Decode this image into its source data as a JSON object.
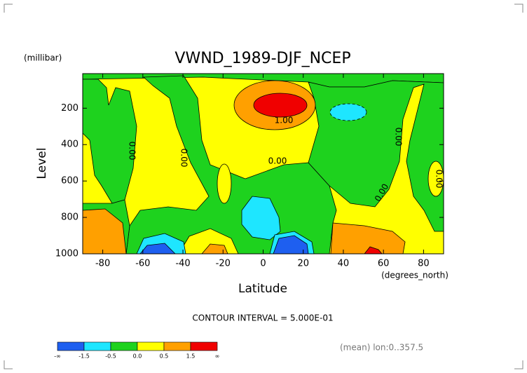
{
  "chart_data": {
    "type": "contour",
    "title": "VWND_1989-DJF_NCEP",
    "y_unit": "(millibar)",
    "ylabel": "Level",
    "xlabel": "Latitude",
    "x_unit": "(degrees_north)",
    "note": "CONTOUR INTERVAL = 5.000E-01",
    "footer": "(mean) lon:0..357.5",
    "xlim": [
      -90,
      90
    ],
    "xticks": [
      -80,
      -60,
      -40,
      -20,
      0,
      20,
      40,
      60,
      80
    ],
    "ylim": [
      1000,
      10
    ],
    "yticks": [
      200,
      400,
      600,
      800,
      1000
    ],
    "contour_labels": [
      "0.00",
      "0.00",
      "0.00",
      "0.00",
      "0.00",
      "0.00",
      "1.00"
    ],
    "colorbar": {
      "colors": [
        "#1e5ff0",
        "#1ee6ff",
        "#1ed21e",
        "#ffff00",
        "#ffa000",
        "#f00000"
      ],
      "ticks": [
        "-∞",
        -1.5,
        -0.5,
        {
          "value": 0,
          "label": "0.0"
        },
        0.5,
        1.5,
        "∞"
      ]
    }
  }
}
